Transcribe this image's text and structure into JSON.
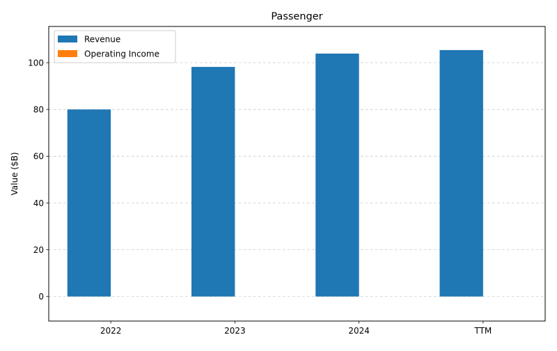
{
  "chart_data": {
    "type": "bar",
    "title": "Passenger",
    "xlabel": "",
    "ylabel": "Value ($B)",
    "categories": [
      "2022",
      "2023",
      "2024",
      "TTM"
    ],
    "series": [
      {
        "name": "Revenue",
        "color": "#1f77b4",
        "values": [
          80.0,
          98.2,
          103.9,
          105.4
        ]
      },
      {
        "name": "Operating Income",
        "color": "#ff7f0e",
        "values": [
          0,
          0,
          0,
          0
        ]
      }
    ],
    "ylim": [
      -10.5,
      115.5
    ],
    "yticks": [
      0,
      20,
      40,
      60,
      80,
      100
    ],
    "ytick_labels": [
      "0",
      "20",
      "40",
      "60",
      "80",
      "100"
    ],
    "grid": {
      "y": true,
      "x": false,
      "style": "dashed"
    },
    "legend": {
      "location": "top-left"
    }
  }
}
